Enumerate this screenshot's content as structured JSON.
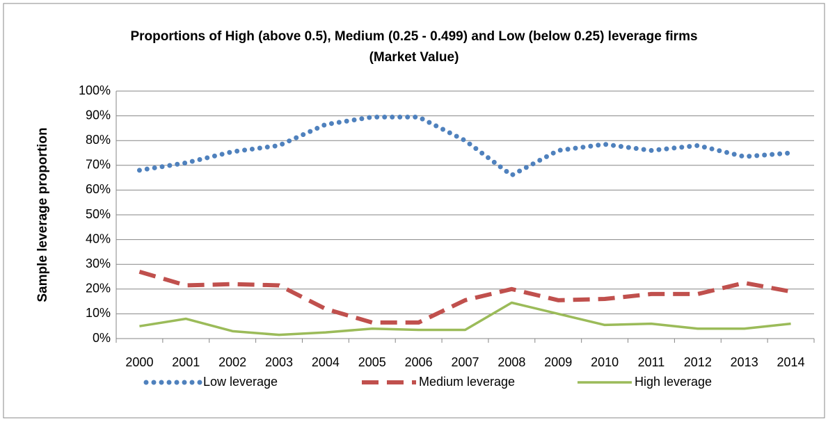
{
  "chart_data": {
    "type": "line",
    "title": "Proportions of High (above 0.5), Medium (0.25 - 0.499) and Low (below 0.25) leverage firms (Market Value)",
    "y_label": "Sample leverage proportion",
    "categories": [
      "2000",
      "2001",
      "2002",
      "2003",
      "2004",
      "2005",
      "2006",
      "2007",
      "2008",
      "2009",
      "2010",
      "2011",
      "2012",
      "2013",
      "2014"
    ],
    "series": [
      {
        "name": "Low leverage",
        "color": "#4f81bd",
        "dash": "dot",
        "values": [
          68,
          71,
          75.5,
          78,
          86.5,
          89.5,
          89.5,
          80,
          66,
          76,
          78.5,
          76,
          78,
          73.5,
          75
        ]
      },
      {
        "name": "Medium leverage",
        "color": "#c0504d",
        "dash": "dash",
        "values": [
          27,
          21.5,
          22,
          21.5,
          12,
          6.5,
          6.5,
          15.5,
          20,
          15.5,
          16,
          18,
          18,
          22.5,
          19
        ]
      },
      {
        "name": "High leverage",
        "color": "#9bbb59",
        "dash": "solid",
        "values": [
          5,
          8,
          3,
          1.5,
          2.5,
          4,
          3.5,
          3.5,
          14.5,
          10,
          5.5,
          6,
          4,
          4,
          6
        ]
      }
    ],
    "ylim": [
      0,
      100
    ],
    "yticks": [
      {
        "value": 0,
        "label": "0%"
      },
      {
        "value": 10,
        "label": "10%"
      },
      {
        "value": 20,
        "label": "20%"
      },
      {
        "value": 30,
        "label": "30%"
      },
      {
        "value": 40,
        "label": "40%"
      },
      {
        "value": 50,
        "label": "50%"
      },
      {
        "value": 60,
        "label": "60%"
      },
      {
        "value": 70,
        "label": "70%"
      },
      {
        "value": 80,
        "label": "80%"
      },
      {
        "value": 90,
        "label": "90%"
      },
      {
        "value": 100,
        "label": "100%"
      }
    ],
    "grid": true,
    "legend": "bottom"
  }
}
